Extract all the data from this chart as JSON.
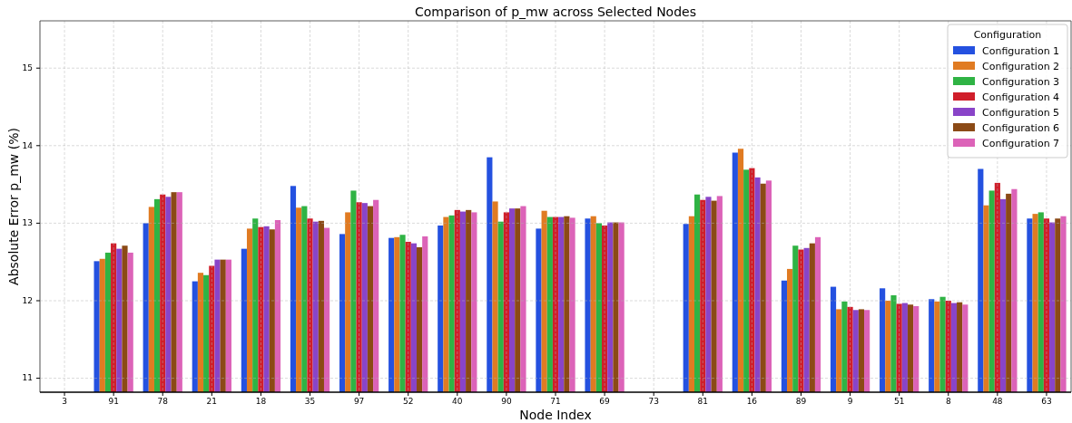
{
  "chart_data": {
    "type": "bar",
    "title": "Comparison of p_mw across Selected Nodes",
    "xlabel": "Node Index",
    "ylabel": "Absolute Error p_mw (%)",
    "legend_title": "Configuration",
    "categories": [
      "3",
      "91",
      "78",
      "21",
      "18",
      "35",
      "97",
      "52",
      "40",
      "90",
      "71",
      "69",
      "73",
      "81",
      "16",
      "89",
      "9",
      "51",
      "8",
      "48",
      "63"
    ],
    "series": [
      {
        "name": "Configuration 1",
        "color": "#2451e0",
        "values": [
          null,
          12.51,
          13.0,
          12.25,
          12.67,
          13.48,
          12.86,
          12.81,
          12.97,
          13.85,
          12.93,
          13.06,
          null,
          12.99,
          13.91,
          12.26,
          12.18,
          12.16,
          12.02,
          13.7,
          13.06
        ]
      },
      {
        "name": "Configuration 2",
        "color": "#e07b22",
        "values": [
          null,
          12.54,
          13.21,
          12.36,
          12.93,
          13.2,
          13.14,
          12.82,
          13.08,
          13.28,
          13.16,
          13.09,
          null,
          13.09,
          13.96,
          12.41,
          11.89,
          12.0,
          11.99,
          13.23,
          13.12
        ]
      },
      {
        "name": "Configuration 3",
        "color": "#2fb344",
        "values": [
          null,
          12.62,
          13.31,
          12.33,
          13.06,
          13.22,
          13.42,
          12.85,
          13.1,
          13.02,
          13.08,
          13.0,
          null,
          13.37,
          13.69,
          12.71,
          11.99,
          12.07,
          12.05,
          13.42,
          13.14
        ]
      },
      {
        "name": "Configuration 4",
        "color": "#d01e2a",
        "values": [
          null,
          12.74,
          13.37,
          12.45,
          12.95,
          13.06,
          13.27,
          12.76,
          13.17,
          13.14,
          13.08,
          12.97,
          null,
          13.3,
          13.71,
          12.66,
          11.92,
          11.96,
          12.0,
          13.52,
          13.06
        ]
      },
      {
        "name": "Configuration 5",
        "color": "#8944c8",
        "values": [
          null,
          12.67,
          13.34,
          12.53,
          12.96,
          13.02,
          13.26,
          12.74,
          13.15,
          13.19,
          13.08,
          13.01,
          null,
          13.34,
          13.59,
          12.68,
          11.88,
          11.97,
          11.97,
          13.31,
          13.01
        ]
      },
      {
        "name": "Configuration 6",
        "color": "#8b4a16",
        "values": [
          null,
          12.71,
          13.4,
          12.53,
          12.92,
          13.03,
          13.22,
          12.69,
          13.17,
          13.19,
          13.09,
          13.01,
          null,
          13.29,
          13.51,
          12.74,
          11.89,
          11.95,
          11.98,
          13.38,
          13.06
        ]
      },
      {
        "name": "Configuration 7",
        "color": "#dc63b8",
        "values": [
          null,
          12.62,
          13.4,
          12.53,
          13.04,
          12.94,
          13.3,
          12.83,
          13.14,
          13.22,
          13.07,
          13.01,
          null,
          13.35,
          13.55,
          12.82,
          11.88,
          11.93,
          11.95,
          13.44,
          13.09
        ]
      }
    ],
    "ylim": [
      10.82,
      15.61
    ],
    "yticks": [
      11,
      12,
      13,
      14,
      15
    ],
    "grid": true,
    "legend": "top right"
  }
}
